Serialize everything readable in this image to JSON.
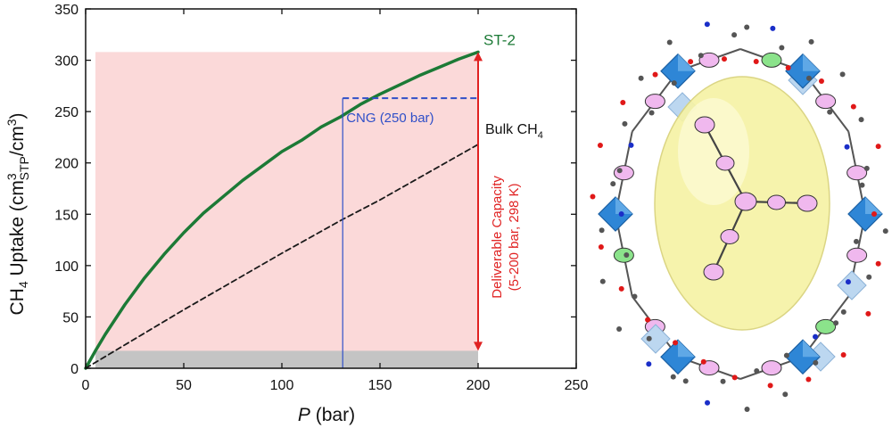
{
  "colors": {
    "shade": "#fbd9d9",
    "gray_band": "#c4c4c4",
    "st2": "#1c7a36",
    "bulk": "#1a1a1a",
    "cng": "#2f4fc8",
    "capacity": "#e02222",
    "axis": "#111111",
    "cage_yellow": "#f6f3a6",
    "cluster_blue": "#2e86d6",
    "linker_pink": "#f0b8ee",
    "linker_green": "#8be38b",
    "oxygen_red": "#e01818",
    "nitrogen_blue": "#1a2ec8",
    "carbon_gray": "#555555"
  },
  "chart_data": {
    "type": "line",
    "xlabel": "P (bar)",
    "xlabel_italic": "P",
    "xlabel_unit": "(bar)",
    "ylabel": "CH4 Uptake (cm3STP/cm3)",
    "ylabel_parts": {
      "a": "CH",
      "a_sub": "4",
      "b": " Uptake (cm",
      "b_sup": "3",
      "b_sub": "STP",
      "c": "/cm",
      "c_sup": "3",
      "d": ")"
    },
    "xlim": [
      0,
      250
    ],
    "ylim": [
      0,
      350
    ],
    "xticks": [
      0,
      50,
      100,
      150,
      200,
      250
    ],
    "yticks": [
      0,
      50,
      100,
      150,
      200,
      250,
      300,
      350
    ],
    "series": [
      {
        "name": "ST-2",
        "style": "solid",
        "x": [
          0,
          5,
          10,
          20,
          30,
          40,
          50,
          60,
          70,
          80,
          90,
          100,
          110,
          120,
          130,
          140,
          150,
          160,
          170,
          180,
          190,
          200
        ],
        "y": [
          0,
          17,
          33,
          62,
          88,
          111,
          132,
          151,
          167,
          183,
          197,
          211,
          222,
          235,
          245,
          257,
          267,
          276,
          285,
          293,
          301,
          308
        ]
      },
      {
        "name": "Bulk CH4",
        "name_main": "Bulk CH",
        "name_sub": "4",
        "style": "dashed",
        "x": [
          0,
          50,
          100,
          131,
          150,
          200
        ],
        "y": [
          0,
          57,
          112,
          145,
          164,
          218
        ]
      }
    ],
    "annotations": {
      "cng_label": "CNG (250 bar)",
      "cng_pressure": 131,
      "cng_uptake": 263,
      "cng_dashed_x_end": 200,
      "capacity_line1": "Deliverable Capacity",
      "capacity_line2": "(5-200 bar, 298 K)",
      "capacity_x": 200,
      "capacity_from": 17,
      "capacity_to": 308
    },
    "shaded_region": {
      "x": [
        5,
        200
      ],
      "y": [
        0,
        308
      ]
    },
    "gray_region": {
      "x": [
        5,
        200
      ],
      "y": [
        0,
        17
      ]
    },
    "grid": false,
    "legend": "inline labels"
  }
}
